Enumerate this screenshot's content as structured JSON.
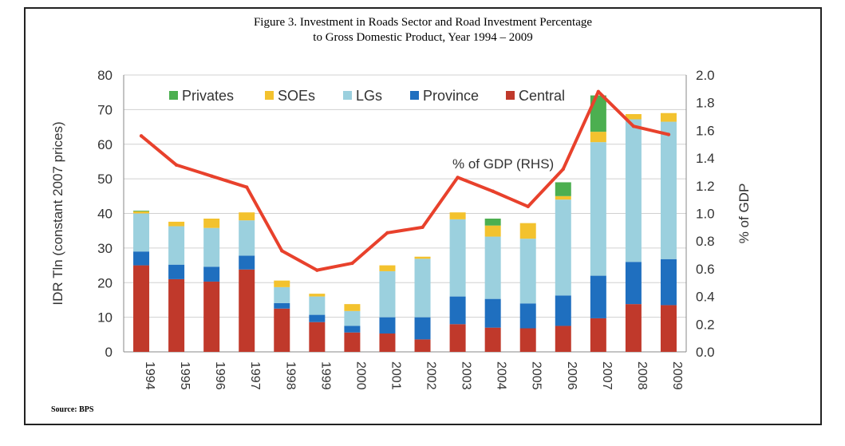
{
  "figure": {
    "title_line1": "Figure 3. Investment in Roads Sector and Road Investment Percentage",
    "title_line2": "to Gross Domestic Product, Year 1994 – 2009",
    "source": "Source:  BPS"
  },
  "chart_data": {
    "type": "bar",
    "stacked": true,
    "categories": [
      "1994",
      "1995",
      "1996",
      "1997",
      "1998",
      "1999",
      "2000",
      "2001",
      "2002",
      "2003",
      "2004",
      "2005",
      "2006",
      "2007",
      "2008",
      "2009"
    ],
    "series": [
      {
        "name": "Central",
        "color": "#c0392b",
        "values": [
          25.0,
          21.0,
          20.3,
          23.8,
          12.5,
          8.6,
          5.6,
          5.3,
          3.6,
          8.0,
          7.0,
          6.8,
          7.5,
          9.7,
          13.8,
          13.5
        ]
      },
      {
        "name": "Province",
        "color": "#1f6fbf",
        "values": [
          4.0,
          4.2,
          4.3,
          4.0,
          1.6,
          2.1,
          1.9,
          4.7,
          6.4,
          8.0,
          8.3,
          7.2,
          8.8,
          12.3,
          12.2,
          13.3
        ]
      },
      {
        "name": "LGs",
        "color": "#9bd0de",
        "values": [
          11.0,
          11.1,
          11.2,
          10.2,
          4.6,
          5.3,
          4.3,
          13.3,
          16.9,
          22.3,
          18.0,
          18.7,
          27.7,
          38.6,
          41.2,
          39.7
        ]
      },
      {
        "name": "SOEs",
        "color": "#f3c22e",
        "values": [
          0.6,
          1.3,
          2.7,
          2.3,
          1.9,
          0.8,
          2.0,
          1.7,
          0.6,
          2.0,
          3.2,
          4.5,
          1.0,
          3.0,
          1.5,
          2.5
        ]
      },
      {
        "name": "Privates",
        "color": "#4caf50",
        "values": [
          0.2,
          0.0,
          0.0,
          0.0,
          0.0,
          0.0,
          0.0,
          0.0,
          0.0,
          0.0,
          2.0,
          0.0,
          4.0,
          10.5,
          0.0,
          0.0
        ]
      }
    ],
    "line": {
      "name": "% of GDP (RHS)",
      "color": "#e8412c",
      "values": [
        1.56,
        1.35,
        1.27,
        1.19,
        0.73,
        0.59,
        0.64,
        0.86,
        0.9,
        1.26,
        1.16,
        1.05,
        1.32,
        1.88,
        1.63,
        1.57
      ]
    },
    "legend_order": [
      "Privates",
      "SOEs",
      "LGs",
      "Province",
      "Central"
    ],
    "legend_position": "top-left",
    "ylabel": "IDR Tln (constant 2007 prices)",
    "y2label": "% of GDP",
    "ylim": [
      0,
      80
    ],
    "y2lim": [
      0,
      2.0
    ],
    "yticks": [
      "0",
      "10",
      "20",
      "30",
      "40",
      "50",
      "60",
      "70",
      "80"
    ],
    "y2ticks": [
      "0.0",
      "0.2",
      "0.4",
      "0.6",
      "0.8",
      "1.0",
      "1.2",
      "1.4",
      "1.6",
      "1.8",
      "2.0"
    ],
    "grid": "horizontal"
  }
}
